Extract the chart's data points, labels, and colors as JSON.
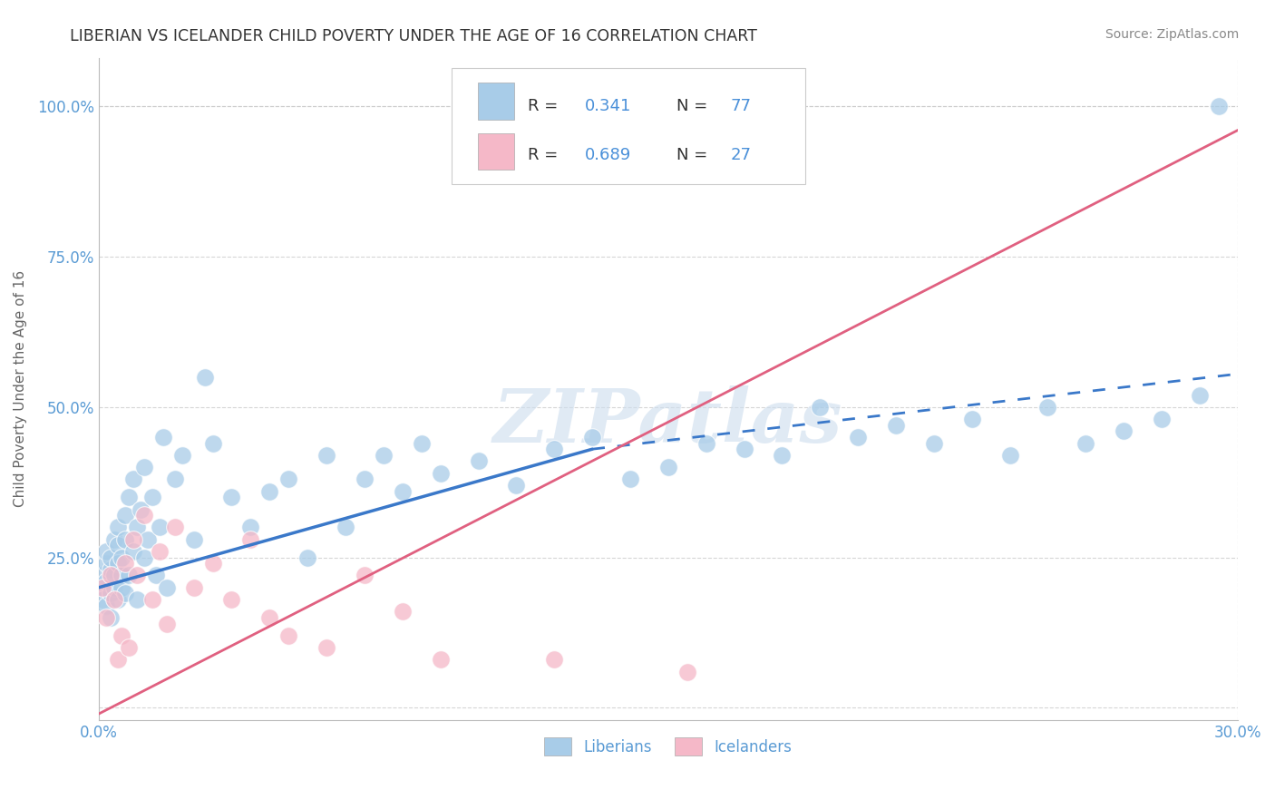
{
  "title": "LIBERIAN VS ICELANDER CHILD POVERTY UNDER THE AGE OF 16 CORRELATION CHART",
  "source": "Source: ZipAtlas.com",
  "ylabel": "Child Poverty Under the Age of 16",
  "xlim": [
    0.0,
    0.3
  ],
  "ylim": [
    -0.02,
    1.08
  ],
  "xticks": [
    0.0,
    0.05,
    0.1,
    0.15,
    0.2,
    0.25,
    0.3
  ],
  "xticklabels": [
    "0.0%",
    "",
    "",
    "",
    "",
    "",
    "30.0%"
  ],
  "yticks": [
    0.0,
    0.25,
    0.5,
    0.75,
    1.0
  ],
  "yticklabels": [
    "",
    "25.0%",
    "50.0%",
    "75.0%",
    "100.0%"
  ],
  "liberian_color": "#a8cce8",
  "icelander_color": "#f5b8c8",
  "liberian_R": 0.341,
  "liberian_N": 77,
  "icelander_R": 0.689,
  "icelander_N": 27,
  "trend_liberian_color": "#3a78c9",
  "trend_icelander_color": "#e06080",
  "watermark": "ZIPatlas",
  "background_color": "#ffffff",
  "grid_color": "#cccccc",
  "liberian_scatter_x": [
    0.001,
    0.001,
    0.001,
    0.002,
    0.002,
    0.002,
    0.002,
    0.003,
    0.003,
    0.003,
    0.003,
    0.004,
    0.004,
    0.004,
    0.005,
    0.005,
    0.005,
    0.005,
    0.006,
    0.006,
    0.006,
    0.007,
    0.007,
    0.007,
    0.008,
    0.008,
    0.009,
    0.009,
    0.01,
    0.01,
    0.011,
    0.012,
    0.012,
    0.013,
    0.014,
    0.015,
    0.016,
    0.017,
    0.018,
    0.02,
    0.022,
    0.025,
    0.028,
    0.03,
    0.035,
    0.04,
    0.045,
    0.05,
    0.055,
    0.06,
    0.065,
    0.07,
    0.075,
    0.08,
    0.085,
    0.09,
    0.1,
    0.11,
    0.12,
    0.13,
    0.14,
    0.15,
    0.16,
    0.17,
    0.18,
    0.19,
    0.2,
    0.21,
    0.22,
    0.23,
    0.24,
    0.25,
    0.26,
    0.27,
    0.28,
    0.29,
    0.295
  ],
  "liberian_scatter_y": [
    0.2,
    0.22,
    0.18,
    0.24,
    0.21,
    0.17,
    0.26,
    0.23,
    0.19,
    0.25,
    0.15,
    0.28,
    0.2,
    0.22,
    0.3,
    0.18,
    0.24,
    0.27,
    0.22,
    0.2,
    0.25,
    0.32,
    0.19,
    0.28,
    0.35,
    0.22,
    0.38,
    0.26,
    0.3,
    0.18,
    0.33,
    0.25,
    0.4,
    0.28,
    0.35,
    0.22,
    0.3,
    0.45,
    0.2,
    0.38,
    0.42,
    0.28,
    0.55,
    0.44,
    0.35,
    0.3,
    0.36,
    0.38,
    0.25,
    0.42,
    0.3,
    0.38,
    0.42,
    0.36,
    0.44,
    0.39,
    0.41,
    0.37,
    0.43,
    0.45,
    0.38,
    0.4,
    0.44,
    0.43,
    0.42,
    0.5,
    0.45,
    0.47,
    0.44,
    0.48,
    0.42,
    0.5,
    0.44,
    0.46,
    0.48,
    0.52,
    1.0
  ],
  "icelander_scatter_x": [
    0.001,
    0.002,
    0.003,
    0.004,
    0.005,
    0.006,
    0.007,
    0.008,
    0.009,
    0.01,
    0.012,
    0.014,
    0.016,
    0.018,
    0.02,
    0.025,
    0.03,
    0.035,
    0.04,
    0.045,
    0.05,
    0.06,
    0.07,
    0.08,
    0.09,
    0.12,
    0.155
  ],
  "icelander_scatter_y": [
    0.2,
    0.15,
    0.22,
    0.18,
    0.08,
    0.12,
    0.24,
    0.1,
    0.28,
    0.22,
    0.32,
    0.18,
    0.26,
    0.14,
    0.3,
    0.2,
    0.24,
    0.18,
    0.28,
    0.15,
    0.12,
    0.1,
    0.22,
    0.16,
    0.08,
    0.08,
    0.06
  ],
  "trend_lib_x0": 0.0,
  "trend_lib_y0": 0.2,
  "trend_lib_x1": 0.13,
  "trend_lib_y1": 0.43,
  "trend_lib_xend": 0.3,
  "trend_lib_yend": 0.555,
  "trend_ice_x0": 0.0,
  "trend_ice_y0": -0.01,
  "trend_ice_x1": 0.3,
  "trend_ice_y1": 0.96
}
